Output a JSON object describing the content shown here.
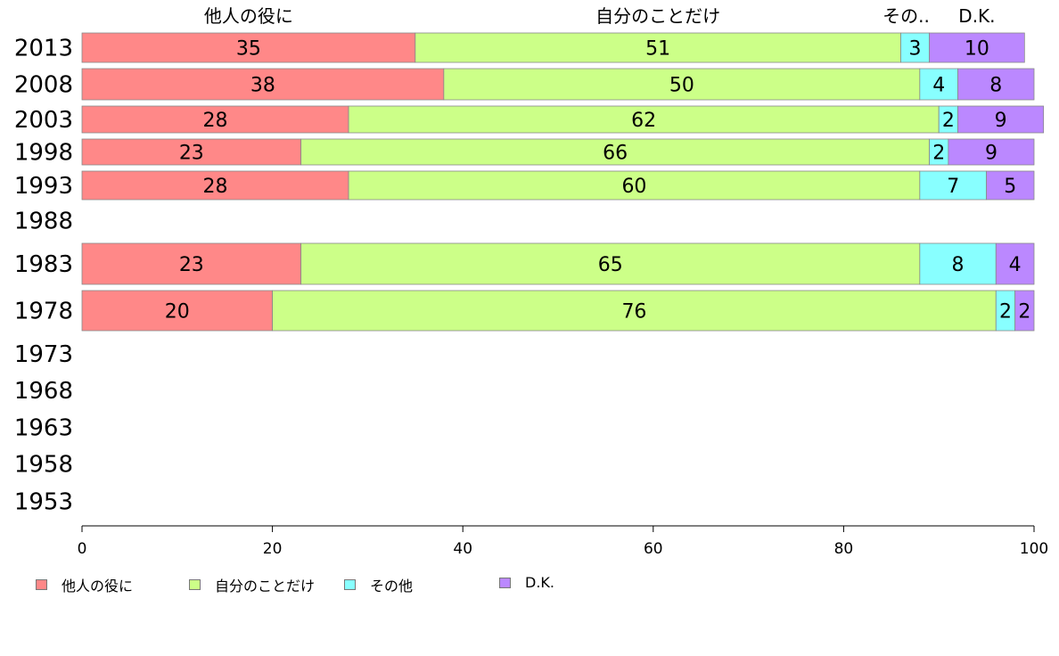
{
  "chart_data": {
    "type": "bar",
    "orientation": "horizontal",
    "stacked": true,
    "categories": [
      "2013",
      "2008",
      "2003",
      "1998",
      "1993",
      "1988",
      "1983",
      "1978",
      "1973",
      "1968",
      "1963",
      "1958",
      "1953"
    ],
    "series": [
      {
        "name": "他人の役に",
        "color": "#ff8888",
        "values": [
          35,
          38,
          28,
          23,
          28,
          null,
          23,
          20,
          null,
          null,
          null,
          null,
          null
        ]
      },
      {
        "name": "自分のことだけ",
        "color": "#ccff88",
        "values": [
          51,
          50,
          62,
          66,
          60,
          null,
          65,
          76,
          null,
          null,
          null,
          null,
          null
        ]
      },
      {
        "name": "その他",
        "color": "#88ffff",
        "values": [
          3,
          4,
          2,
          2,
          7,
          null,
          8,
          2,
          null,
          null,
          null,
          null,
          null
        ]
      },
      {
        "name": "D.K.",
        "color": "#bb88ff",
        "values": [
          10,
          8,
          9,
          9,
          5,
          null,
          4,
          2,
          null,
          null,
          null,
          null,
          null
        ]
      }
    ],
    "top_labels": [
      "他人の役に",
      "自分のことだけ",
      "その..",
      "D.K."
    ],
    "xlim": [
      0,
      100
    ],
    "xticks": [
      "0",
      "20",
      "40",
      "60",
      "80",
      "100"
    ],
    "grid": false,
    "legend_position": "bottom"
  }
}
